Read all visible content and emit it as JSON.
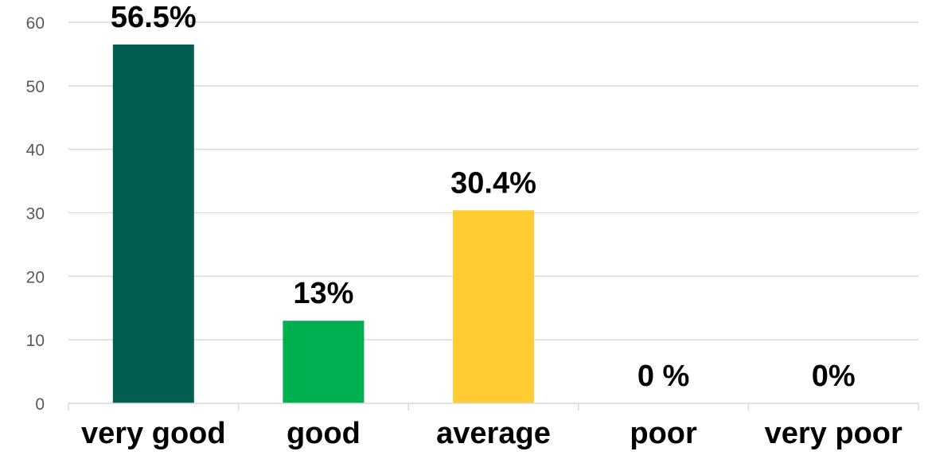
{
  "chart_data": {
    "type": "bar",
    "title": "",
    "xlabel": "",
    "ylabel": "",
    "categories": [
      "very good",
      "good",
      "average",
      "poor",
      "very poor"
    ],
    "values": [
      56.5,
      13,
      30.4,
      0,
      0
    ],
    "data_labels": [
      "56.5%",
      "13%",
      "30.4%",
      "0 %",
      "0%"
    ],
    "colors": [
      "#015E50",
      "#00AF4F",
      "#FFCC33",
      "#1F77B4",
      "#1F77B4"
    ],
    "ylim": [
      0,
      60
    ],
    "yticks": [
      0,
      10,
      20,
      30,
      40,
      50,
      60
    ],
    "grid": true,
    "legend": "none"
  }
}
